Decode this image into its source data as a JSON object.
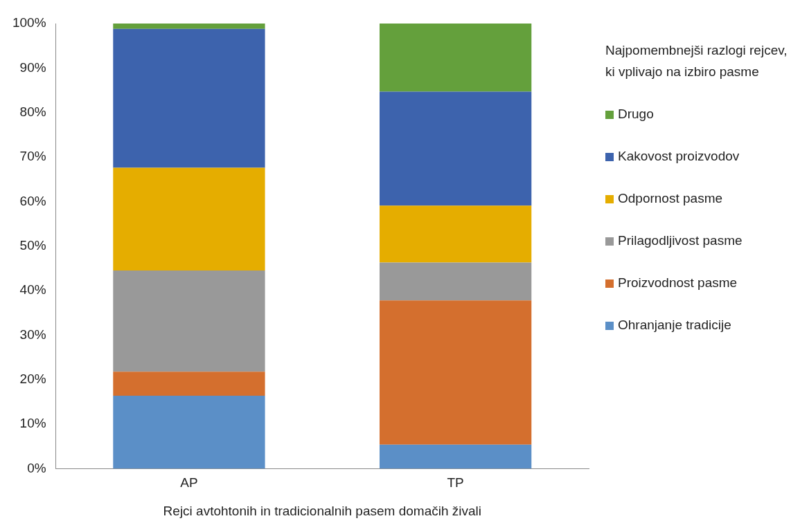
{
  "chart_data": {
    "type": "bar",
    "stacked": true,
    "xlabel": "Rejci avtohtonih in tradicionalnih pasem domačih živali",
    "legend_title": "Najpomembnejši razlogi rejcev, ki vplivajo na izbiro pasme",
    "legend": "right",
    "grid": false,
    "categories": [
      "AP",
      "TP"
    ],
    "ylim": [
      0,
      100
    ],
    "yticks": [
      {
        "value": 0,
        "label": "0%"
      },
      {
        "value": 10,
        "label": "10%"
      },
      {
        "value": 20,
        "label": "20%"
      },
      {
        "value": 30,
        "label": "30%"
      },
      {
        "value": 40,
        "label": "40%"
      },
      {
        "value": 50,
        "label": "50%"
      },
      {
        "value": 60,
        "label": "60%"
      },
      {
        "value": 70,
        "label": "70%"
      },
      {
        "value": 80,
        "label": "80%"
      },
      {
        "value": 90,
        "label": "90%"
      },
      {
        "value": 100,
        "label": "100%"
      }
    ],
    "series": [
      {
        "name": "Ohranjanje tradicije",
        "color": "#5b8fc7",
        "values": [
          16.4,
          5.4
        ]
      },
      {
        "name": "Proizvodnost pasme",
        "color": "#d46f2e",
        "values": [
          5.4,
          32.4
        ]
      },
      {
        "name": "Prilagodljivost pasme",
        "color": "#999999",
        "values": [
          22.7,
          8.5
        ]
      },
      {
        "name": "Odpornost pasme",
        "color": "#e5ad00",
        "values": [
          23.1,
          12.8
        ]
      },
      {
        "name": "Kakovost proizvodov",
        "color": "#3d63ad",
        "values": [
          31.2,
          25.6
        ]
      },
      {
        "name": "Drugo",
        "color": "#64a03c",
        "values": [
          1.2,
          15.3
        ]
      }
    ]
  }
}
